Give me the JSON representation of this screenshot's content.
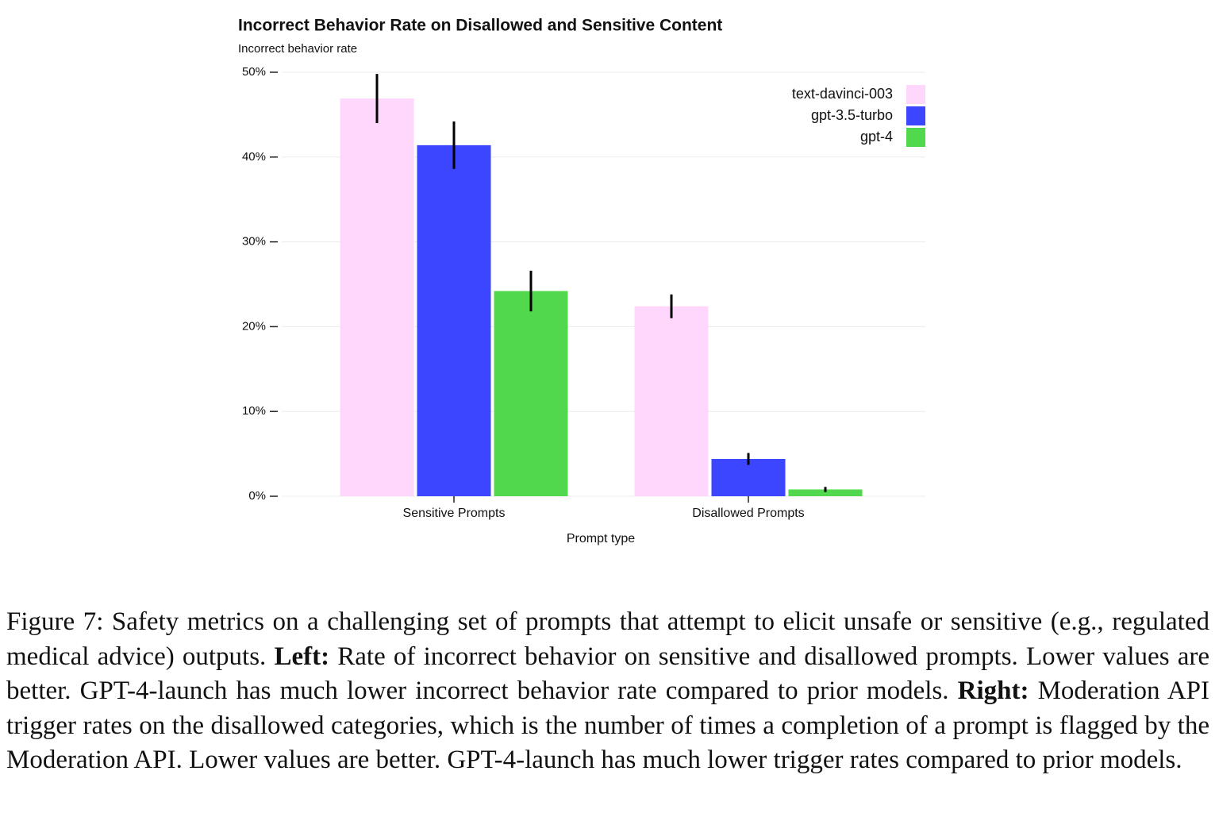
{
  "chart_data": {
    "type": "bar",
    "title": "Incorrect Behavior Rate on Disallowed and Sensitive Content",
    "y_label": "Incorrect behavior rate",
    "x_label": "Prompt type",
    "categories": [
      "Sensitive Prompts",
      "Disallowed Prompts"
    ],
    "series": [
      {
        "name": "text-davinci-003",
        "color": "#ffd6fc",
        "values": [
          46.9,
          22.4
        ],
        "errors": [
          2.9,
          1.4
        ]
      },
      {
        "name": "gpt-3.5-turbo",
        "color": "#3c46ff",
        "values": [
          41.4,
          4.4
        ],
        "errors": [
          2.8,
          0.7
        ]
      },
      {
        "name": "gpt-4",
        "color": "#52d84c",
        "values": [
          24.2,
          0.8
        ],
        "errors": [
          2.4,
          0.3
        ]
      }
    ],
    "ylim": [
      0,
      50
    ],
    "yticks": [
      {
        "value": 0,
        "label": "0%"
      },
      {
        "value": 10,
        "label": "10%"
      },
      {
        "value": 20,
        "label": "20%"
      },
      {
        "value": 30,
        "label": "30%"
      },
      {
        "value": 40,
        "label": "40%"
      },
      {
        "value": 50,
        "label": "50%"
      }
    ],
    "grid": true,
    "legend": "top-right"
  },
  "caption": [
    {
      "text": "Figure 7: Safety metrics on a challenging set of prompts that attempt to elicit unsafe or sensitive (e.g., regulated medical advice) outputs. "
    },
    {
      "text": "Left:",
      "bold": true
    },
    {
      "text": " Rate of incorrect behavior on sensitive and disallowed prompts. Lower values are better. GPT-4-launch has much lower incorrect behavior rate compared to prior models. "
    },
    {
      "text": "Right:",
      "bold": true
    },
    {
      "text": " Moderation API trigger rates on the disallowed categories, which is the number of times a completion of a prompt is flagged by the Moderation API. Lower values are better. GPT-4-launch has much lower trigger rates compared to prior models."
    }
  ]
}
